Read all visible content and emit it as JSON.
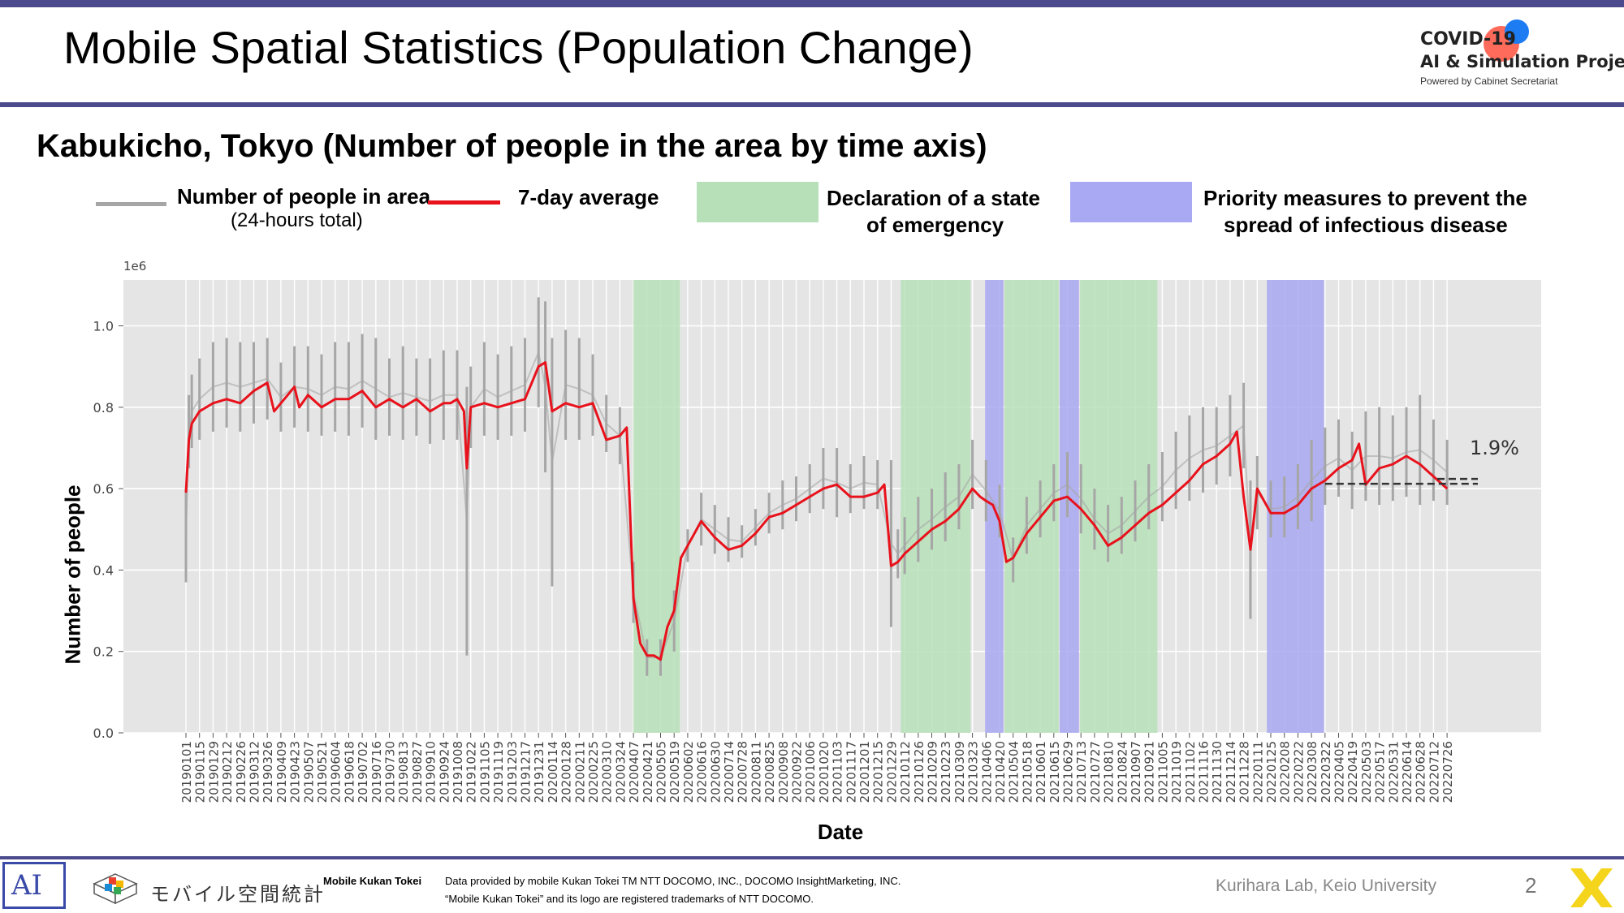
{
  "header": {
    "title": "Mobile Spatial Statistics (Population Change)",
    "logo_line1": "COVID-19",
    "logo_line2": "AI & Simulation Project",
    "logo_line3": "Powered by Cabinet Secretariat"
  },
  "subtitle": "Kabukicho, Tokyo (Number of people in the area by time axis)",
  "legend": {
    "daily_label": "Number of people in area",
    "daily_sub": "(24-hours total)",
    "avg_label": "7-day average",
    "emergency_label_1": "Declaration of a state",
    "emergency_label_2": "of emergency",
    "priority_label_1": "Priority measures to prevent the",
    "priority_label_2": "spread of infectious disease"
  },
  "colors": {
    "daily": "#a6a6a6",
    "average": "#e8121c",
    "emergency": "#b7e0b9",
    "priority": "#a9a8f2",
    "plot_bg": "#e5e5e5",
    "frame": "#4b4a8c"
  },
  "chart_data": {
    "type": "line",
    "xlabel": "Date",
    "ylabel": "Number of people",
    "y_scale_label": "1e6",
    "ylim": [
      0.0,
      1.1
    ],
    "yticks": [
      0.0,
      0.2,
      0.4,
      0.6,
      0.8,
      1.0
    ],
    "ytick_labels": [
      "0.0",
      "0.2",
      "0.4",
      "0.6",
      "0.8",
      "1.0"
    ],
    "x_tick_labels": [
      "20190101",
      "20190115",
      "20190129",
      "20190212",
      "20190226",
      "20190312",
      "20190326",
      "20190409",
      "20190423",
      "20190507",
      "20190521",
      "20190604",
      "20190618",
      "20190702",
      "20190716",
      "20190730",
      "20190813",
      "20190827",
      "20190910",
      "20190924",
      "20191008",
      "20191022",
      "20191105",
      "20191119",
      "20191203",
      "20191217",
      "20191231",
      "20200114",
      "20200128",
      "20200211",
      "20200225",
      "20200310",
      "20200324",
      "20200407",
      "20200421",
      "20200505",
      "20200519",
      "20200602",
      "20200616",
      "20200630",
      "20200714",
      "20200728",
      "20200811",
      "20200825",
      "20200908",
      "20200922",
      "20201006",
      "20201020",
      "20201103",
      "20201117",
      "20201201",
      "20201215",
      "20201229",
      "20210112",
      "20210126",
      "20210209",
      "20210223",
      "20210309",
      "20210323",
      "20210406",
      "20210420",
      "20210504",
      "20210518",
      "20210601",
      "20210615",
      "20210629",
      "20210713",
      "20210727",
      "20210810",
      "20210824",
      "20210907",
      "20210921",
      "20211005",
      "20211019",
      "20211102",
      "20211116",
      "20211130",
      "20211214",
      "20211228",
      "20220111",
      "20220125",
      "20220208",
      "20220222",
      "20220308",
      "20220322",
      "20220405",
      "20220419",
      "20220503",
      "20220517",
      "20220531",
      "20220614",
      "20220628",
      "20220712",
      "20220726"
    ],
    "shaded_periods": [
      {
        "kind": "emergency",
        "start": "20200407",
        "end": "20200525"
      },
      {
        "kind": "emergency",
        "start": "20210108",
        "end": "20210321"
      },
      {
        "kind": "priority",
        "start": "20210405",
        "end": "20210424"
      },
      {
        "kind": "emergency",
        "start": "20210425",
        "end": "20210620"
      },
      {
        "kind": "priority",
        "start": "20210621",
        "end": "20210711"
      },
      {
        "kind": "emergency",
        "start": "20210712",
        "end": "20210930"
      },
      {
        "kind": "priority",
        "start": "20220121",
        "end": "20220321"
      }
    ],
    "series": [
      {
        "name": "7-day average",
        "dates": [
          "20190101",
          "20190104",
          "20190107",
          "20190115",
          "20190129",
          "20190212",
          "20190226",
          "20190312",
          "20190326",
          "20190402",
          "20190409",
          "20190416",
          "20190423",
          "20190428",
          "20190507",
          "20190521",
          "20190604",
          "20190618",
          "20190702",
          "20190716",
          "20190730",
          "20190813",
          "20190827",
          "20190910",
          "20190924",
          "20191001",
          "20191008",
          "20191015",
          "20191018",
          "20191022",
          "20191105",
          "20191119",
          "20191203",
          "20191217",
          "20191224",
          "20191231",
          "20200107",
          "20200114",
          "20200128",
          "20200211",
          "20200225",
          "20200310",
          "20200324",
          "20200331",
          "20200407",
          "20200414",
          "20200421",
          "20200428",
          "20200505",
          "20200512",
          "20200519",
          "20200526",
          "20200602",
          "20200616",
          "20200630",
          "20200714",
          "20200728",
          "20200811",
          "20200825",
          "20200908",
          "20200922",
          "20201006",
          "20201020",
          "20201103",
          "20201117",
          "20201201",
          "20201215",
          "20201222",
          "20201229",
          "20210105",
          "20210112",
          "20210126",
          "20210209",
          "20210223",
          "20210309",
          "20210323",
          "20210331",
          "20210406",
          "20210413",
          "20210420",
          "20210427",
          "20210504",
          "20210518",
          "20210601",
          "20210615",
          "20210629",
          "20210713",
          "20210727",
          "20210810",
          "20210824",
          "20210907",
          "20210921",
          "20211005",
          "20211019",
          "20211102",
          "20211116",
          "20211130",
          "20211214",
          "20211221",
          "20211228",
          "20220104",
          "20220111",
          "20220125",
          "20220208",
          "20220222",
          "20220308",
          "20220322",
          "20220405",
          "20220419",
          "20220426",
          "20220503",
          "20220517",
          "20220531",
          "20220614",
          "20220628",
          "20220712",
          "20220726"
        ],
        "values": [
          0.59,
          0.72,
          0.76,
          0.79,
          0.81,
          0.82,
          0.81,
          0.84,
          0.86,
          0.79,
          0.81,
          0.83,
          0.85,
          0.8,
          0.83,
          0.8,
          0.82,
          0.82,
          0.84,
          0.8,
          0.82,
          0.8,
          0.82,
          0.79,
          0.81,
          0.81,
          0.82,
          0.79,
          0.65,
          0.8,
          0.81,
          0.8,
          0.81,
          0.82,
          0.86,
          0.9,
          0.91,
          0.79,
          0.81,
          0.8,
          0.81,
          0.72,
          0.73,
          0.75,
          0.33,
          0.22,
          0.19,
          0.19,
          0.18,
          0.26,
          0.3,
          0.43,
          0.46,
          0.52,
          0.48,
          0.45,
          0.46,
          0.49,
          0.53,
          0.54,
          0.56,
          0.58,
          0.6,
          0.61,
          0.58,
          0.58,
          0.59,
          0.61,
          0.41,
          0.42,
          0.44,
          0.47,
          0.5,
          0.52,
          0.55,
          0.6,
          0.58,
          0.57,
          0.56,
          0.52,
          0.42,
          0.43,
          0.49,
          0.53,
          0.57,
          0.58,
          0.55,
          0.51,
          0.46,
          0.48,
          0.51,
          0.54,
          0.56,
          0.59,
          0.62,
          0.66,
          0.68,
          0.71,
          0.74,
          0.58,
          0.45,
          0.6,
          0.54,
          0.54,
          0.56,
          0.6,
          0.62,
          0.65,
          0.67,
          0.71,
          0.61,
          0.65,
          0.66,
          0.68,
          0.66,
          0.63,
          0.6
        ]
      },
      {
        "name": "Number of people in area",
        "dates": [
          "20190101",
          "20190104",
          "20190107",
          "20190115",
          "20190129",
          "20190212",
          "20190226",
          "20190312",
          "20190326",
          "20190409",
          "20190423",
          "20190507",
          "20190521",
          "20190604",
          "20190618",
          "20190702",
          "20190716",
          "20190730",
          "20190813",
          "20190827",
          "20190910",
          "20190924",
          "20191008",
          "20191018",
          "20191022",
          "20191105",
          "20191119",
          "20191203",
          "20191217",
          "20191231",
          "20200107",
          "20200114",
          "20200128",
          "20200211",
          "20200225",
          "20200310",
          "20200324",
          "20200407",
          "20200421",
          "20200505",
          "20200519",
          "20200602",
          "20200616",
          "20200630",
          "20200714",
          "20200728",
          "20200811",
          "20200825",
          "20200908",
          "20200922",
          "20201006",
          "20201020",
          "20201103",
          "20201117",
          "20201201",
          "20201215",
          "20201229",
          "20210105",
          "20210112",
          "20210126",
          "20210209",
          "20210223",
          "20210309",
          "20210323",
          "20210406",
          "20210420",
          "20210504",
          "20210518",
          "20210601",
          "20210615",
          "20210629",
          "20210713",
          "20210727",
          "20210810",
          "20210824",
          "20210907",
          "20210921",
          "20211005",
          "20211019",
          "20211102",
          "20211116",
          "20211130",
          "20211214",
          "20211228",
          "20220104",
          "20220111",
          "20220125",
          "20220208",
          "20220222",
          "20220308",
          "20220322",
          "20220405",
          "20220419",
          "20220503",
          "20220517",
          "20220531",
          "20220614",
          "20220628",
          "20220712",
          "20220726"
        ],
        "values_low": [
          0.37,
          0.65,
          0.7,
          0.72,
          0.74,
          0.75,
          0.74,
          0.76,
          0.77,
          0.74,
          0.75,
          0.74,
          0.73,
          0.74,
          0.73,
          0.75,
          0.72,
          0.73,
          0.72,
          0.73,
          0.71,
          0.72,
          0.72,
          0.19,
          0.7,
          0.73,
          0.72,
          0.73,
          0.74,
          0.8,
          0.64,
          0.36,
          0.72,
          0.72,
          0.73,
          0.69,
          0.66,
          0.27,
          0.14,
          0.14,
          0.2,
          0.42,
          0.46,
          0.44,
          0.42,
          0.43,
          0.46,
          0.49,
          0.5,
          0.52,
          0.54,
          0.55,
          0.53,
          0.54,
          0.55,
          0.55,
          0.26,
          0.38,
          0.39,
          0.42,
          0.45,
          0.47,
          0.5,
          0.55,
          0.52,
          0.48,
          0.37,
          0.44,
          0.48,
          0.52,
          0.53,
          0.49,
          0.45,
          0.42,
          0.44,
          0.47,
          0.5,
          0.52,
          0.55,
          0.57,
          0.59,
          0.61,
          0.63,
          0.65,
          0.28,
          0.5,
          0.48,
          0.48,
          0.5,
          0.52,
          0.56,
          0.58,
          0.55,
          0.57,
          0.56,
          0.57,
          0.58,
          0.56,
          0.57,
          0.56
        ],
        "values_high": [
          0.6,
          0.83,
          0.88,
          0.92,
          0.96,
          0.97,
          0.96,
          0.96,
          0.97,
          0.91,
          0.95,
          0.95,
          0.93,
          0.96,
          0.96,
          0.98,
          0.97,
          0.92,
          0.95,
          0.92,
          0.92,
          0.94,
          0.94,
          0.85,
          0.9,
          0.96,
          0.93,
          0.95,
          0.97,
          1.07,
          1.06,
          0.97,
          0.99,
          0.97,
          0.93,
          0.83,
          0.8,
          0.42,
          0.23,
          0.23,
          0.35,
          0.5,
          0.59,
          0.56,
          0.53,
          0.51,
          0.55,
          0.59,
          0.62,
          0.63,
          0.66,
          0.7,
          0.7,
          0.66,
          0.68,
          0.67,
          0.67,
          0.5,
          0.53,
          0.58,
          0.6,
          0.64,
          0.66,
          0.72,
          0.67,
          0.61,
          0.48,
          0.58,
          0.62,
          0.66,
          0.69,
          0.66,
          0.6,
          0.56,
          0.58,
          0.62,
          0.66,
          0.69,
          0.74,
          0.78,
          0.8,
          0.8,
          0.83,
          0.86,
          0.62,
          0.68,
          0.62,
          0.63,
          0.66,
          0.72,
          0.75,
          0.77,
          0.74,
          0.79,
          0.8,
          0.78,
          0.8,
          0.83,
          0.77,
          0.72
        ]
      }
    ],
    "reference": {
      "label": "1.9%",
      "baseline_start": "20220322",
      "baseline_end": "20220810",
      "baseline_value": 0.612,
      "current_value": 0.624
    }
  },
  "footer": {
    "ai_logo": "AI",
    "mobile_kukan_jp": "モバイル空間統計",
    "brand": "Mobile Kukan Tokei",
    "note1": "Data provided by mobile Kukan Tokei TM NTT DOCOMO, INC., DOCOMO InsightMarketing, INC.",
    "note2": "“Mobile Kukan Tokei” and its logo are registered trademarks of NTT DOCOMO.",
    "lab": "Kurihara Lab, Keio University",
    "page": "2"
  }
}
